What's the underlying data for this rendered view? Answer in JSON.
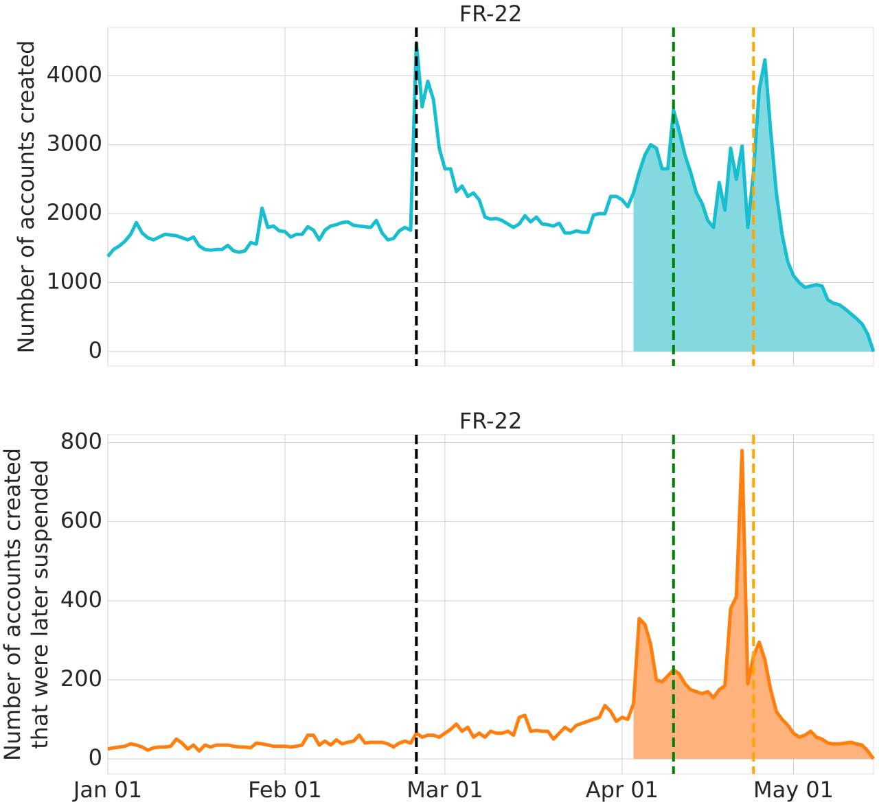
{
  "chart_data": [
    {
      "type": "line",
      "title": "FR-22",
      "ylabel": [
        "Number of accounts created"
      ],
      "x": [
        "Jan 01",
        "Jan 02",
        "Jan 03",
        "Jan 04",
        "Jan 05",
        "Jan 06",
        "Jan 07",
        "Jan 08",
        "Jan 09",
        "Jan 10",
        "Jan 11",
        "Jan 12",
        "Jan 13",
        "Jan 14",
        "Jan 15",
        "Jan 16",
        "Jan 17",
        "Jan 18",
        "Jan 19",
        "Jan 20",
        "Jan 21",
        "Jan 22",
        "Jan 23",
        "Jan 24",
        "Jan 25",
        "Jan 26",
        "Jan 27",
        "Jan 28",
        "Jan 29",
        "Jan 30",
        "Jan 31",
        "Feb 01",
        "Feb 02",
        "Feb 03",
        "Feb 04",
        "Feb 05",
        "Feb 06",
        "Feb 07",
        "Feb 08",
        "Feb 09",
        "Feb 10",
        "Feb 11",
        "Feb 12",
        "Feb 13",
        "Feb 14",
        "Feb 15",
        "Feb 16",
        "Feb 17",
        "Feb 18",
        "Feb 19",
        "Feb 20",
        "Feb 21",
        "Feb 22",
        "Feb 23",
        "Feb 24",
        "Feb 25",
        "Feb 26",
        "Feb 27",
        "Feb 28",
        "Mar 01",
        "Mar 02",
        "Mar 03",
        "Mar 04",
        "Mar 05",
        "Mar 06",
        "Mar 07",
        "Mar 08",
        "Mar 09",
        "Mar 10",
        "Mar 11",
        "Mar 12",
        "Mar 13",
        "Mar 14",
        "Mar 15",
        "Mar 16",
        "Mar 17",
        "Mar 18",
        "Mar 19",
        "Mar 20",
        "Mar 21",
        "Mar 22",
        "Mar 23",
        "Mar 24",
        "Mar 25",
        "Mar 26",
        "Mar 27",
        "Mar 28",
        "Mar 29",
        "Mar 30",
        "Mar 31",
        "Apr 01",
        "Apr 02",
        "Apr 03",
        "Apr 04",
        "Apr 05",
        "Apr 06",
        "Apr 07",
        "Apr 08",
        "Apr 09",
        "Apr 10",
        "Apr 11",
        "Apr 12",
        "Apr 13",
        "Apr 14",
        "Apr 15",
        "Apr 16",
        "Apr 17",
        "Apr 18",
        "Apr 19",
        "Apr 20",
        "Apr 21",
        "Apr 22",
        "Apr 23",
        "Apr 24",
        "Apr 25",
        "Apr 26",
        "Apr 27",
        "Apr 28",
        "Apr 29",
        "Apr 30",
        "May 01",
        "May 02",
        "May 03",
        "May 04",
        "May 05",
        "May 06",
        "May 07",
        "May 08",
        "May 09",
        "May 10",
        "May 11",
        "May 12",
        "May 13",
        "May 14",
        "May 15"
      ],
      "series": [
        {
          "color": "#17becf",
          "fill_color": "#84d9e1",
          "values": [
            1380,
            1480,
            1530,
            1600,
            1700,
            1870,
            1720,
            1650,
            1620,
            1660,
            1700,
            1690,
            1680,
            1650,
            1620,
            1660,
            1530,
            1480,
            1470,
            1480,
            1480,
            1540,
            1460,
            1440,
            1460,
            1580,
            1560,
            2080,
            1800,
            1820,
            1750,
            1740,
            1660,
            1700,
            1700,
            1810,
            1760,
            1620,
            1760,
            1820,
            1840,
            1870,
            1880,
            1830,
            1820,
            1810,
            1800,
            1900,
            1720,
            1620,
            1640,
            1750,
            1800,
            1760,
            4480,
            3550,
            3920,
            3650,
            2950,
            2650,
            2650,
            2320,
            2400,
            2250,
            2300,
            2200,
            1950,
            1920,
            1930,
            1900,
            1850,
            1800,
            1850,
            1970,
            1880,
            1950,
            1850,
            1840,
            1820,
            1860,
            1720,
            1720,
            1750,
            1730,
            1730,
            1980,
            2000,
            2000,
            2250,
            2250,
            2200,
            2100,
            2300,
            2600,
            2850,
            3000,
            2950,
            2650,
            2650,
            3500,
            3200,
            2850,
            2600,
            2300,
            2150,
            1900,
            1800,
            2450,
            2050,
            2950,
            2500,
            2980,
            1800,
            2600,
            3800,
            4230,
            3200,
            2300,
            1700,
            1300,
            1100,
            1000,
            930,
            950,
            970,
            950,
            750,
            700,
            680,
            620,
            550,
            480,
            400,
            250,
            0
          ]
        }
      ],
      "fill_from": "Apr 03",
      "vlines": [
        {
          "x": "Feb 24",
          "color": "#000000"
        },
        {
          "x": "Apr 10",
          "color": "#008000"
        },
        {
          "x": "Apr 24",
          "color": "#ffa500"
        }
      ],
      "ylim": [
        -210,
        4700
      ],
      "yticks": [
        0,
        1000,
        2000,
        3000,
        4000
      ],
      "grid": true
    },
    {
      "type": "line",
      "title": "FR-22",
      "ylabel": [
        "Number of accounts created",
        "that were later suspended"
      ],
      "x": [
        "Jan 01",
        "Jan 02",
        "Jan 03",
        "Jan 04",
        "Jan 05",
        "Jan 06",
        "Jan 07",
        "Jan 08",
        "Jan 09",
        "Jan 10",
        "Jan 11",
        "Jan 12",
        "Jan 13",
        "Jan 14",
        "Jan 15",
        "Jan 16",
        "Jan 17",
        "Jan 18",
        "Jan 19",
        "Jan 20",
        "Jan 21",
        "Jan 22",
        "Jan 23",
        "Jan 24",
        "Jan 25",
        "Jan 26",
        "Jan 27",
        "Jan 28",
        "Jan 29",
        "Jan 30",
        "Jan 31",
        "Feb 01",
        "Feb 02",
        "Feb 03",
        "Feb 04",
        "Feb 05",
        "Feb 06",
        "Feb 07",
        "Feb 08",
        "Feb 09",
        "Feb 10",
        "Feb 11",
        "Feb 12",
        "Feb 13",
        "Feb 14",
        "Feb 15",
        "Feb 16",
        "Feb 17",
        "Feb 18",
        "Feb 19",
        "Feb 20",
        "Feb 21",
        "Feb 22",
        "Feb 23",
        "Feb 24",
        "Feb 25",
        "Feb 26",
        "Feb 27",
        "Feb 28",
        "Mar 01",
        "Mar 02",
        "Mar 03",
        "Mar 04",
        "Mar 05",
        "Mar 06",
        "Mar 07",
        "Mar 08",
        "Mar 09",
        "Mar 10",
        "Mar 11",
        "Mar 12",
        "Mar 13",
        "Mar 14",
        "Mar 15",
        "Mar 16",
        "Mar 17",
        "Mar 18",
        "Mar 19",
        "Mar 20",
        "Mar 21",
        "Mar 22",
        "Mar 23",
        "Mar 24",
        "Mar 25",
        "Mar 26",
        "Mar 27",
        "Mar 28",
        "Mar 29",
        "Mar 30",
        "Mar 31",
        "Apr 01",
        "Apr 02",
        "Apr 03",
        "Apr 04",
        "Apr 05",
        "Apr 06",
        "Apr 07",
        "Apr 08",
        "Apr 09",
        "Apr 10",
        "Apr 11",
        "Apr 12",
        "Apr 13",
        "Apr 14",
        "Apr 15",
        "Apr 16",
        "Apr 17",
        "Apr 18",
        "Apr 19",
        "Apr 20",
        "Apr 21",
        "Apr 22",
        "Apr 23",
        "Apr 24",
        "Apr 25",
        "Apr 26",
        "Apr 27",
        "Apr 28",
        "Apr 29",
        "Apr 30",
        "May 01",
        "May 02",
        "May 03",
        "May 04",
        "May 05",
        "May 06",
        "May 07",
        "May 08",
        "May 09",
        "May 10",
        "May 11",
        "May 12",
        "May 13",
        "May 14",
        "May 15"
      ],
      "series": [
        {
          "color": "#ff7f0e",
          "fill_color": "#ffb27c",
          "values": [
            25,
            28,
            30,
            32,
            38,
            35,
            30,
            22,
            28,
            30,
            30,
            32,
            50,
            40,
            25,
            35,
            20,
            35,
            30,
            35,
            35,
            35,
            32,
            30,
            30,
            28,
            40,
            38,
            35,
            32,
            32,
            32,
            30,
            32,
            35,
            60,
            60,
            35,
            45,
            35,
            48,
            38,
            42,
            45,
            60,
            40,
            42,
            42,
            42,
            38,
            30,
            40,
            45,
            40,
            65,
            55,
            60,
            60,
            55,
            65,
            75,
            88,
            70,
            80,
            55,
            65,
            55,
            70,
            65,
            65,
            70,
            60,
            105,
            110,
            70,
            72,
            70,
            70,
            50,
            65,
            80,
            70,
            85,
            90,
            95,
            100,
            105,
            135,
            120,
            95,
            105,
            100,
            140,
            355,
            340,
            290,
            200,
            195,
            210,
            225,
            215,
            190,
            175,
            170,
            165,
            170,
            155,
            175,
            185,
            380,
            410,
            780,
            190,
            260,
            295,
            250,
            175,
            120,
            100,
            85,
            65,
            55,
            60,
            70,
            55,
            50,
            40,
            38,
            38,
            40,
            42,
            38,
            35,
            20,
            0
          ]
        }
      ],
      "fill_from": "Apr 03",
      "vlines": [
        {
          "x": "Feb 24",
          "color": "#000000"
        },
        {
          "x": "Apr 10",
          "color": "#008000"
        },
        {
          "x": "Apr 24",
          "color": "#ffa500"
        }
      ],
      "ylim": [
        -38,
        820
      ],
      "yticks": [
        0,
        200,
        400,
        600,
        800
      ],
      "grid": true,
      "xticks": [
        "Jan 01",
        "Feb 01",
        "Mar 01",
        "Apr 01",
        "May 01"
      ]
    }
  ]
}
